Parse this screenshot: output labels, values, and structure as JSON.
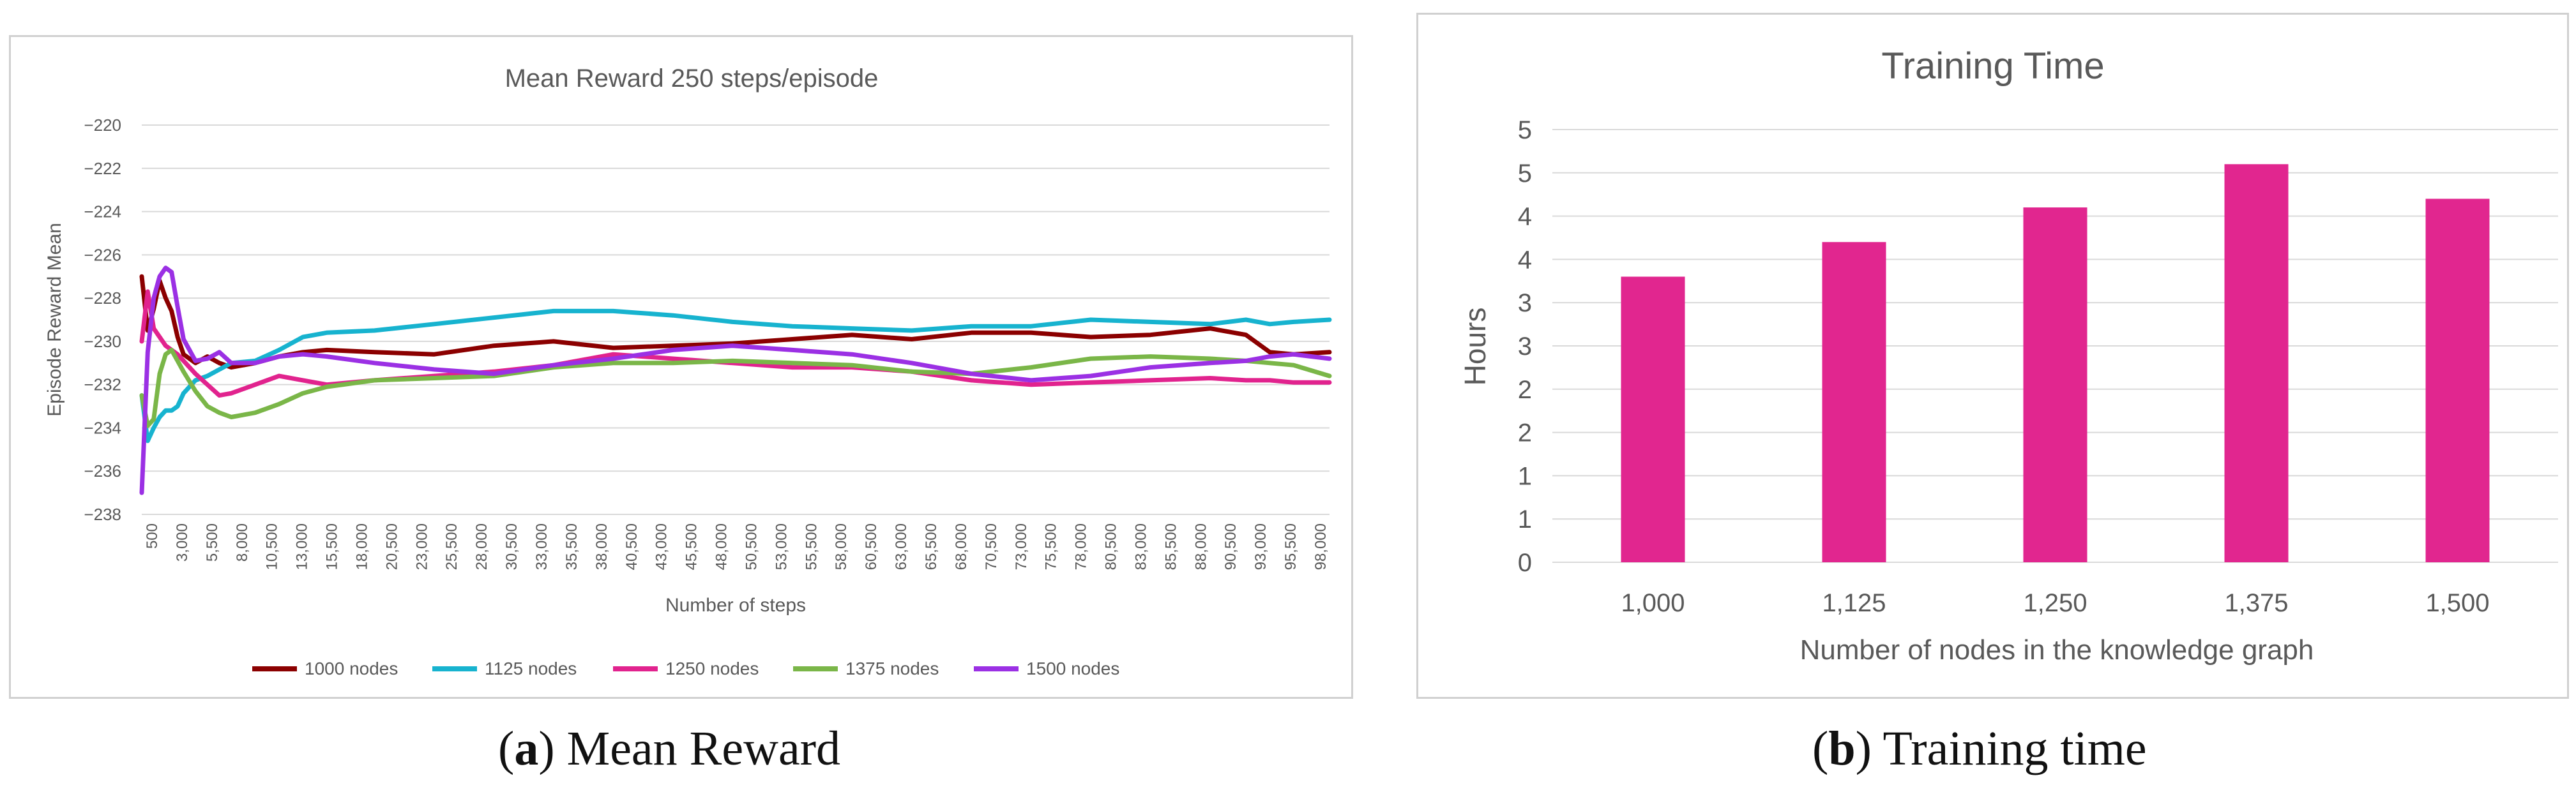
{
  "chart_data": [
    {
      "type": "line",
      "title": "Mean Reward 250 steps/episode",
      "xlabel": "Number of steps",
      "ylabel": "Episode Reward Mean",
      "ylim": [
        -238,
        -220
      ],
      "yticks": [
        -220,
        -222,
        -224,
        -226,
        -228,
        -230,
        -232,
        -234,
        -236,
        -238
      ],
      "xlim": [
        500,
        100000
      ],
      "xticks": [
        "500",
        "3,000",
        "5,500",
        "8,000",
        "10,500",
        "13,000",
        "15,500",
        "18,000",
        "20,500",
        "23,000",
        "25,500",
        "28,000",
        "30,500",
        "33,000",
        "35,500",
        "38,000",
        "40,500",
        "43,000",
        "45,500",
        "48,000",
        "50,500",
        "53,000",
        "55,500",
        "58,000",
        "60,500",
        "63,000",
        "65,500",
        "68,000",
        "70,500",
        "73,000",
        "75,500",
        "78,000",
        "80,500",
        "83,000",
        "85,500",
        "88,000",
        "90,500",
        "93,000",
        "95,500",
        "98,000"
      ],
      "grid": true,
      "legend_position": "bottom",
      "x": [
        500,
        1000,
        1500,
        2000,
        2500,
        3000,
        3500,
        4000,
        5000,
        6000,
        7000,
        8000,
        10000,
        12000,
        14000,
        16000,
        20000,
        25000,
        30000,
        35000,
        40000,
        45000,
        50000,
        55000,
        60000,
        65000,
        70000,
        75000,
        80000,
        85000,
        90000,
        93000,
        95000,
        97000,
        100000
      ],
      "series": [
        {
          "name": "1000 nodes",
          "color": "#8b0000",
          "values": [
            -227.0,
            -229.5,
            -228.5,
            -227.2,
            -228.0,
            -228.6,
            -229.8,
            -230.6,
            -231.0,
            -230.7,
            -231.0,
            -231.2,
            -231.0,
            -230.7,
            -230.5,
            -230.4,
            -230.5,
            -230.6,
            -230.2,
            -230.0,
            -230.3,
            -230.2,
            -230.1,
            -229.9,
            -229.7,
            -229.9,
            -229.6,
            -229.6,
            -229.8,
            -229.7,
            -229.4,
            -229.7,
            -230.5,
            -230.6,
            -230.5
          ]
        },
        {
          "name": "1125 nodes",
          "color": "#17b3cf",
          "values": [
            -232.5,
            -234.6,
            -234.0,
            -233.5,
            -233.2,
            -233.2,
            -233.0,
            -232.4,
            -231.8,
            -231.6,
            -231.3,
            -231.0,
            -230.9,
            -230.4,
            -229.8,
            -229.6,
            -229.5,
            -229.2,
            -228.9,
            -228.6,
            -228.6,
            -228.8,
            -229.1,
            -229.3,
            -229.4,
            -229.5,
            -229.3,
            -229.3,
            -229.0,
            -229.1,
            -229.2,
            -229.0,
            -229.2,
            -229.1,
            -229.0
          ]
        },
        {
          "name": "1250 nodes",
          "color": "#e1238e",
          "values": [
            -230.0,
            -227.7,
            -229.4,
            -229.8,
            -230.2,
            -230.4,
            -230.6,
            -230.9,
            -231.5,
            -232.0,
            -232.5,
            -232.4,
            -232.0,
            -231.6,
            -231.8,
            -232.0,
            -231.8,
            -231.6,
            -231.4,
            -231.1,
            -230.6,
            -230.8,
            -231.0,
            -231.2,
            -231.2,
            -231.4,
            -231.8,
            -232.0,
            -231.9,
            -231.8,
            -231.7,
            -231.8,
            -231.8,
            -231.9,
            -231.9
          ]
        },
        {
          "name": "1375 nodes",
          "color": "#7ab648",
          "values": [
            -232.5,
            -233.9,
            -233.6,
            -231.5,
            -230.6,
            -230.4,
            -230.9,
            -231.4,
            -232.3,
            -233.0,
            -233.3,
            -233.5,
            -233.3,
            -232.9,
            -232.4,
            -232.1,
            -231.8,
            -231.7,
            -231.6,
            -231.2,
            -231.0,
            -231.0,
            -230.9,
            -231.0,
            -231.1,
            -231.4,
            -231.5,
            -231.2,
            -230.8,
            -230.7,
            -230.8,
            -230.9,
            -231.0,
            -231.1,
            -231.6
          ]
        },
        {
          "name": "1500 nodes",
          "color": "#9b30e4",
          "values": [
            -237.0,
            -230.5,
            -228.0,
            -227.0,
            -226.6,
            -226.8,
            -228.4,
            -229.9,
            -230.9,
            -230.8,
            -230.5,
            -231.0,
            -231.0,
            -230.7,
            -230.6,
            -230.7,
            -231.0,
            -231.3,
            -231.5,
            -231.1,
            -230.8,
            -230.4,
            -230.2,
            -230.4,
            -230.6,
            -231.0,
            -231.5,
            -231.8,
            -231.6,
            -231.2,
            -231.0,
            -230.9,
            -230.7,
            -230.6,
            -230.8
          ]
        }
      ]
    },
    {
      "type": "bar",
      "title": "Training Time",
      "xlabel": "Number of nodes in the knowledge graph",
      "ylabel": "Hours",
      "categories": [
        "1,000",
        "1,125",
        "1,250",
        "1,375",
        "1,500"
      ],
      "values": [
        3.3,
        3.7,
        4.1,
        4.6,
        4.2
      ],
      "ylim": [
        0,
        5
      ],
      "ytick_labels": [
        "0",
        "1",
        "1",
        "2",
        "2",
        "3",
        "3",
        "4",
        "4",
        "5",
        "5"
      ],
      "grid": true,
      "bar_color": "#e1268f"
    }
  ],
  "captions": {
    "a_label": "a",
    "a_text": " Mean Reward",
    "b_label": "b",
    "b_text": " Training time"
  }
}
